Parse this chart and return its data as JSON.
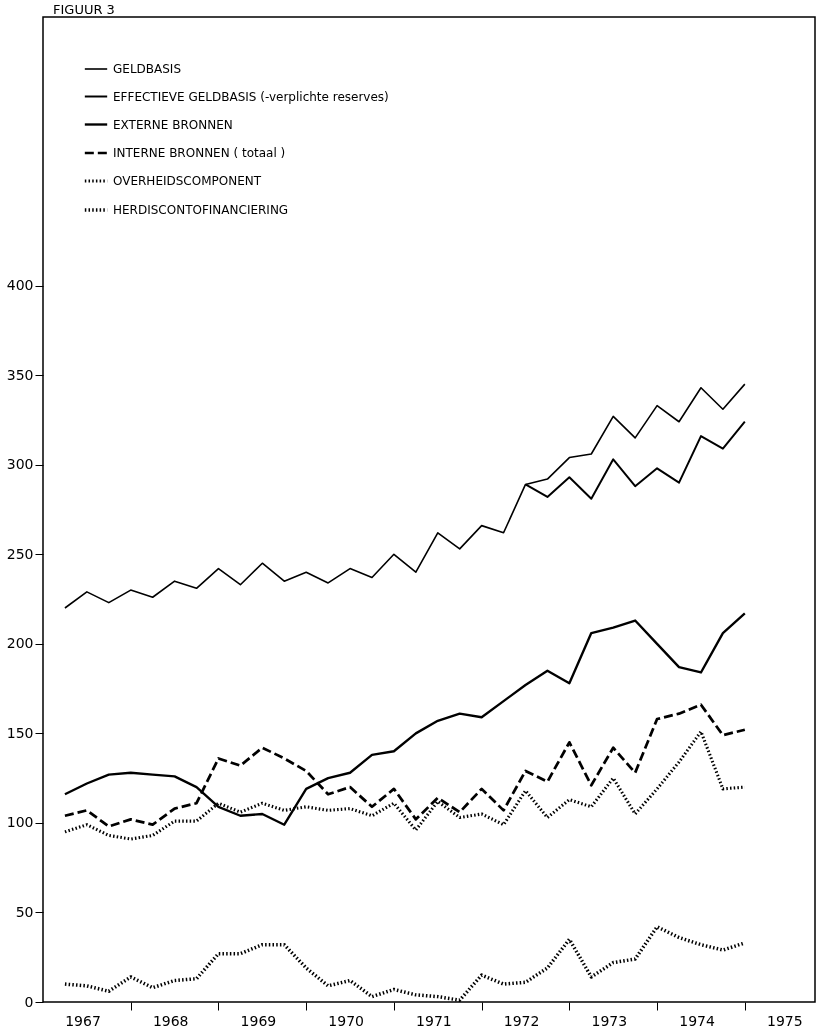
{
  "chart_data": {
    "type": "line",
    "title": "FIGUUR 3",
    "grid": false,
    "legend": "top left",
    "marker": "none",
    "x": [
      1967.25,
      1967.5,
      1967.75,
      1968,
      1968.25,
      1968.5,
      1968.75,
      1969,
      1969.25,
      1969.5,
      1969.75,
      1970,
      1970.25,
      1970.5,
      1970.75,
      1971,
      1971.25,
      1971.5,
      1971.75,
      1972,
      1972.25,
      1972.5,
      1972.75,
      1973,
      1973.25,
      1973.5,
      1973.75,
      1974,
      1974.25,
      1974.5,
      1974.75,
      1975
    ],
    "xlim": [
      1967,
      1975.8
    ],
    "xticks": [
      {
        "value": 1967.45,
        "label": "1967"
      },
      {
        "value": 1968,
        "label": null
      },
      {
        "value": 1968.45,
        "label": "1968"
      },
      {
        "value": 1969,
        "label": null
      },
      {
        "value": 1969.45,
        "label": "1969"
      },
      {
        "value": 1970,
        "label": null
      },
      {
        "value": 1970.45,
        "label": "1970"
      },
      {
        "value": 1971,
        "label": null
      },
      {
        "value": 1971.45,
        "label": "1971"
      },
      {
        "value": 1972,
        "label": null
      },
      {
        "value": 1972.45,
        "label": "1972"
      },
      {
        "value": 1973,
        "label": null
      },
      {
        "value": 1973.45,
        "label": "1973"
      },
      {
        "value": 1974,
        "label": null
      },
      {
        "value": 1974.45,
        "label": "1974"
      },
      {
        "value": 1975,
        "label": null
      },
      {
        "value": 1975.45,
        "label": "1975"
      }
    ],
    "ylim": [
      0,
      550
    ],
    "yticks": [
      0,
      50,
      100,
      150,
      200,
      250,
      300,
      350,
      400
    ],
    "series": [
      {
        "name": "GELDBASIS",
        "color": "#000000",
        "line_style": "solid",
        "values": [
          220,
          229,
          223,
          230,
          226,
          235,
          231,
          242,
          233,
          245,
          235,
          240,
          234,
          242,
          237,
          250,
          240,
          262,
          253,
          266,
          262,
          289,
          292,
          304,
          306,
          327,
          315,
          333,
          324,
          343,
          331,
          345
        ]
      },
      {
        "name": "EFFECTIEVE GELDBASIS (-verplichte reserves)",
        "color": "#000000",
        "line_style": "solid",
        "values": [
          null,
          null,
          null,
          null,
          null,
          null,
          null,
          null,
          null,
          null,
          null,
          null,
          null,
          null,
          null,
          null,
          null,
          null,
          null,
          null,
          null,
          289,
          282,
          293,
          281,
          303,
          288,
          298,
          290,
          316,
          309,
          324
        ]
      },
      {
        "name": "EXTERNE BRONNEN",
        "color": "#000000",
        "line_style": "solid",
        "values": [
          116,
          122,
          127,
          128,
          127,
          126,
          120,
          109,
          104,
          105,
          99,
          119,
          125,
          128,
          138,
          140,
          150,
          157,
          161,
          159,
          168,
          177,
          185,
          178,
          206,
          209,
          213,
          200,
          187,
          184,
          206,
          217
        ]
      },
      {
        "name": "INTERNE BRONNEN ( totaal )",
        "color": "#000000",
        "line_style": "dashed",
        "values": [
          104,
          107,
          98,
          102,
          99,
          108,
          111,
          136,
          132,
          142,
          136,
          129,
          116,
          120,
          109,
          119,
          102,
          114,
          106,
          119,
          107,
          129,
          123,
          145,
          121,
          142,
          128,
          158,
          161,
          166,
          149,
          152
        ]
      },
      {
        "name": "OVERHEIDSCOMPONENT",
        "color": "#000000",
        "line_style": "dotted",
        "values": [
          95,
          99,
          93,
          91,
          93,
          101,
          101,
          111,
          106,
          111,
          107,
          109,
          107,
          108,
          104,
          111,
          96,
          112,
          103,
          105,
          99,
          118,
          103,
          113,
          109,
          125,
          105,
          119,
          134,
          151,
          119,
          120
        ]
      },
      {
        "name": "HERDISCONTOFINANCIERING",
        "color": "#000000",
        "line_style": "dotted",
        "values": [
          10,
          9,
          6,
          14,
          8,
          12,
          13,
          27,
          27,
          32,
          32,
          19,
          9,
          12,
          3,
          7,
          4,
          3,
          1,
          15,
          10,
          11,
          19,
          35,
          14,
          22,
          24,
          42,
          36,
          32,
          29,
          33
        ]
      }
    ]
  }
}
